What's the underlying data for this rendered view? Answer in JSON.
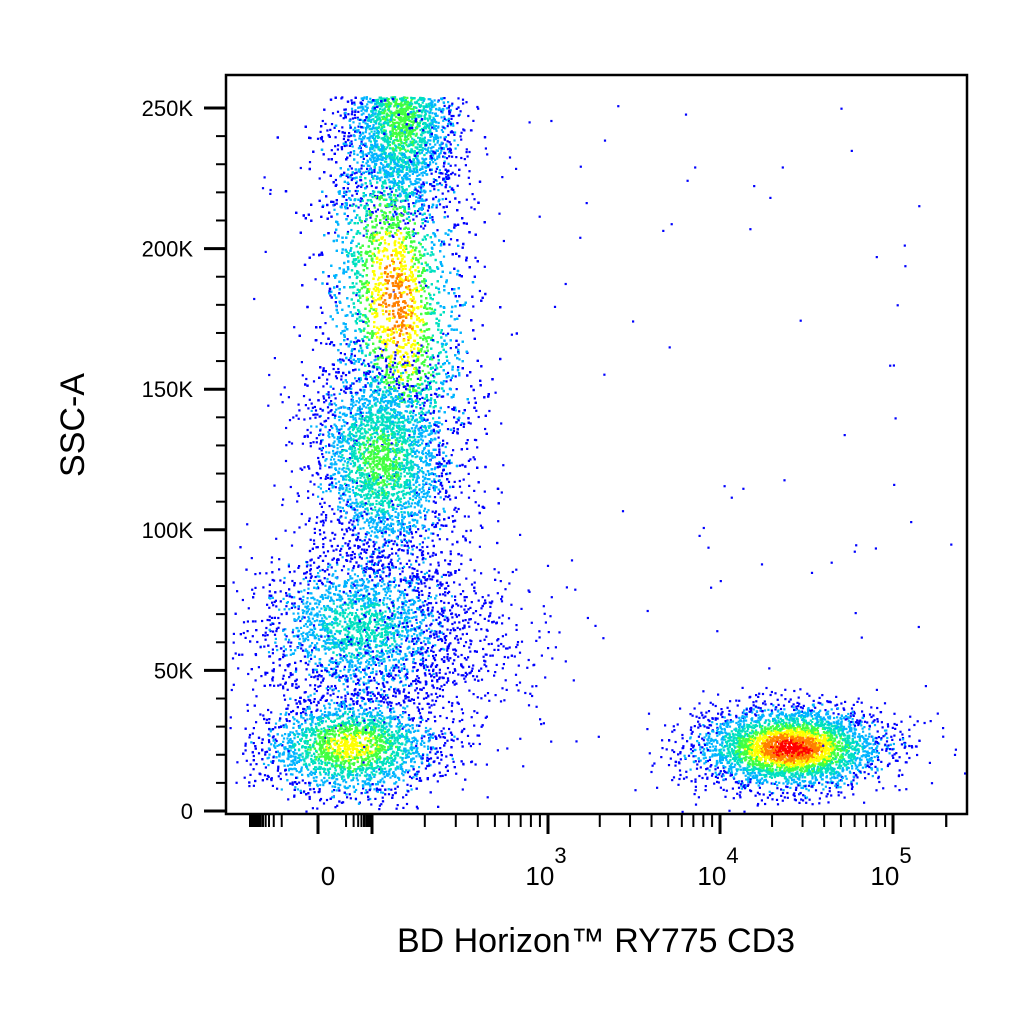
{
  "chart_data": {
    "type": "scatter",
    "plot_style": "density pseudocolor dot plot",
    "title": "",
    "xlabel": "BD Horizon™ RY775 CD3",
    "ylabel": "SSC-A",
    "x_scale": "biexponential",
    "y_scale": "linear",
    "ylim": [
      0,
      262144
    ],
    "y_ticks": [
      {
        "value": 0,
        "label": "0"
      },
      {
        "value": 50000,
        "label": "50K"
      },
      {
        "value": 100000,
        "label": "100K"
      },
      {
        "value": 150000,
        "label": "150K"
      },
      {
        "value": 200000,
        "label": "200K"
      },
      {
        "value": 250000,
        "label": "250K"
      }
    ],
    "x_ticks": [
      {
        "value": 0,
        "base": "0",
        "exp": ""
      },
      {
        "value": 1000,
        "base": "10",
        "exp": "3"
      },
      {
        "value": 10000,
        "base": "10",
        "exp": "4"
      },
      {
        "value": 100000,
        "base": "10",
        "exp": "5"
      }
    ],
    "density_colors": [
      "#0000ff",
      "#00b4ff",
      "#00e0c0",
      "#40ff40",
      "#ffff00",
      "#ff8000",
      "#ff0000"
    ],
    "populations": [
      {
        "description": "CD3-negative debris / low SSC",
        "x_center": 0,
        "y_center": 20000,
        "peak_density": "high"
      },
      {
        "description": "CD3-negative intermediate SSC",
        "x_center": 100,
        "y_center": 65000,
        "peak_density": "medium"
      },
      {
        "description": "CD3-negative high SSC",
        "x_center": 200,
        "y_center": 165000,
        "peak_density": "high"
      },
      {
        "description": "CD3-positive low SSC",
        "x_center": 22000,
        "y_center": 22000,
        "peak_density": "very high"
      }
    ],
    "grid": false,
    "legend": "none"
  }
}
